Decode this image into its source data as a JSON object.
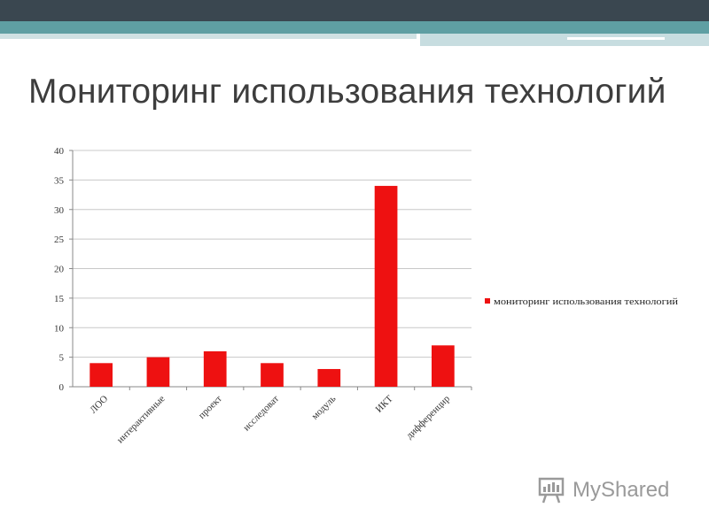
{
  "slide": {
    "title": "Мониторинг использования технологий",
    "colors": {
      "header_dark": "#3a4750",
      "header_teal": "#5f9fa3",
      "header_light": "#cfe1e3",
      "bar": "#ee1111",
      "title_text": "#3d3d3d"
    }
  },
  "chart_data": {
    "type": "bar",
    "categories": [
      "ЛОО",
      "интерактивные",
      "проект",
      "исследоват",
      "модуль",
      "ИКТ",
      "дифференцир"
    ],
    "series": [
      {
        "name": "мониторинг использования технологий",
        "values": [
          4,
          5,
          6,
          4,
          3,
          34,
          7
        ],
        "color": "#ee1111"
      }
    ],
    "ylim": [
      0,
      40
    ],
    "yticks": [
      0,
      5,
      10,
      15,
      20,
      25,
      30,
      35,
      40
    ],
    "grid": true,
    "legend_position": "right",
    "xlabel": "",
    "ylabel": ""
  },
  "watermark": {
    "text": "MyShared",
    "icon": "presentation-board-icon"
  }
}
